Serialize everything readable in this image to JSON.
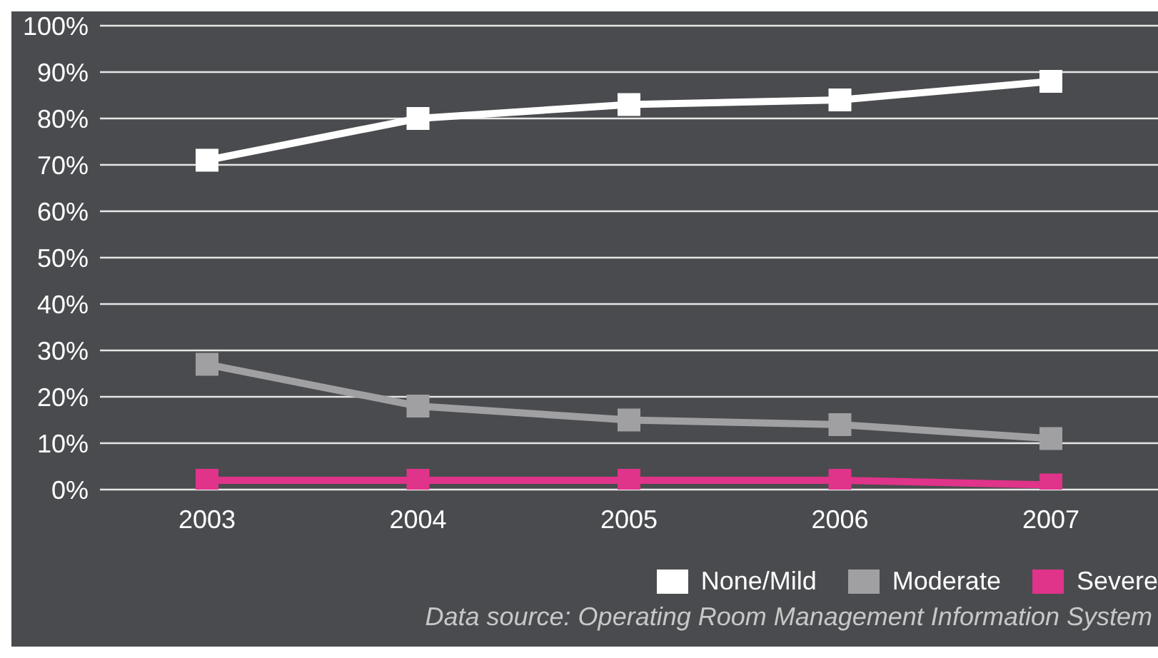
{
  "chart_data": {
    "type": "line",
    "categories": [
      "2003",
      "2004",
      "2005",
      "2006",
      "2007"
    ],
    "series": [
      {
        "name": "None/Mild",
        "color": "#ffffff",
        "values": [
          71,
          80,
          83,
          84,
          88
        ]
      },
      {
        "name": "Moderate",
        "color": "#a0a0a2",
        "values": [
          27,
          18,
          15,
          14,
          11
        ]
      },
      {
        "name": "Severe",
        "color": "#e0338a",
        "values": [
          2,
          2,
          2,
          2,
          1
        ]
      }
    ],
    "ylim": [
      0,
      100
    ],
    "yticks": [
      {
        "value": 0,
        "label": "0%"
      },
      {
        "value": 10,
        "label": "10%"
      },
      {
        "value": 20,
        "label": "20%"
      },
      {
        "value": 30,
        "label": "30%"
      },
      {
        "value": 40,
        "label": "40%"
      },
      {
        "value": 50,
        "label": "50%"
      },
      {
        "value": 60,
        "label": "60%"
      },
      {
        "value": 70,
        "label": "70%"
      },
      {
        "value": 80,
        "label": "80%"
      },
      {
        "value": 90,
        "label": "90%"
      },
      {
        "value": 100,
        "label": "100%"
      }
    ],
    "grid": "y",
    "legend": "bottom right",
    "marker": "square",
    "line_style": "solid",
    "annotations": [
      "Data source: Operating Room Management Information System"
    ]
  }
}
